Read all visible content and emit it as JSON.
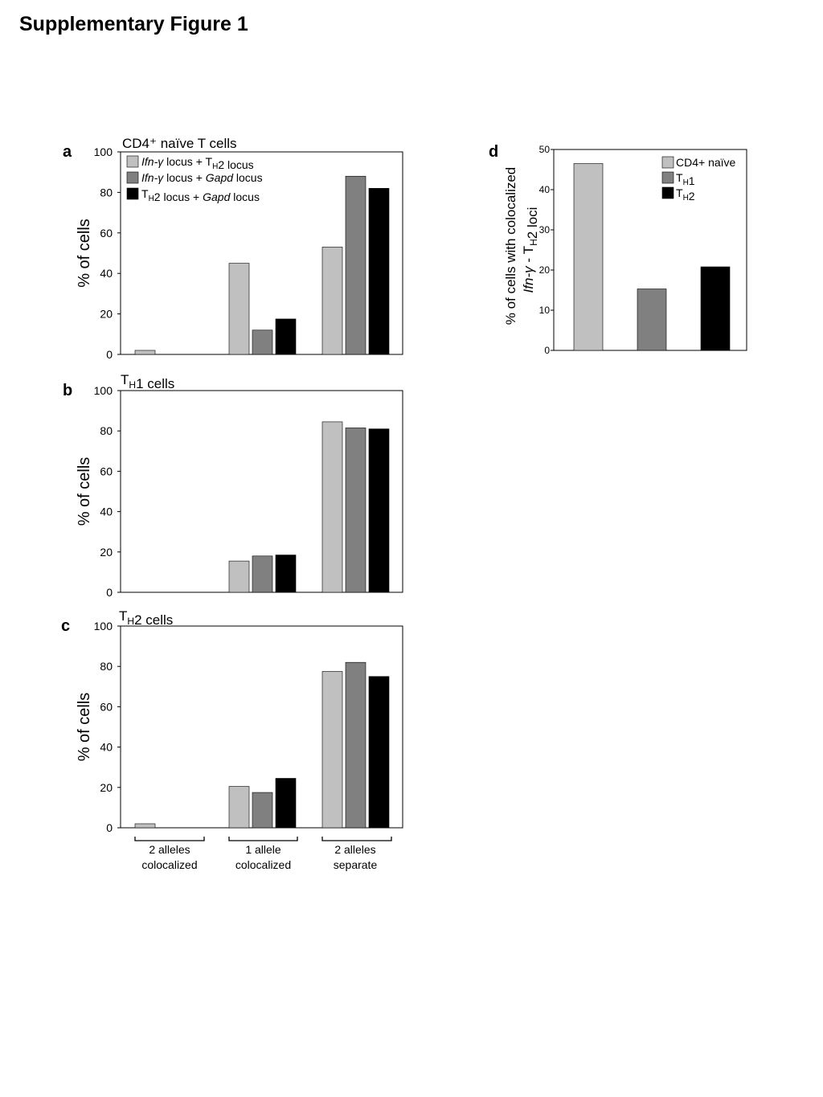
{
  "page": {
    "title": "Supplementary Figure 1"
  },
  "panels": {
    "a": "a",
    "b": "b",
    "c": "c",
    "d": "d"
  },
  "colors": {
    "light": "#c0c0c0",
    "mid": "#808080",
    "dark": "#000000"
  },
  "chart_data": [
    {
      "id": "a",
      "type": "bar",
      "title": "CD4⁺ naïve T cells",
      "ylabel": "% of cells",
      "ylim": [
        0,
        100
      ],
      "yticks": [
        0,
        20,
        40,
        60,
        80,
        100
      ],
      "categories": [
        "2 alleles colocalized",
        "1 allele colocalized",
        "2 alleles separate"
      ],
      "series": [
        {
          "name": "Ifn-γ locus + TH2 locus",
          "color": "#c0c0c0",
          "values": [
            2,
            45,
            53
          ]
        },
        {
          "name": "Ifn-γ locus + Gapd locus",
          "color": "#808080",
          "values": [
            0,
            12,
            88
          ]
        },
        {
          "name": "TH2 locus + Gapd locus",
          "color": "#000000",
          "values": [
            0,
            17.5,
            82
          ]
        }
      ],
      "legend": "top-left"
    },
    {
      "id": "b",
      "type": "bar",
      "title": "TH1 cells",
      "ylabel": "% of cells",
      "ylim": [
        0,
        100
      ],
      "yticks": [
        0,
        20,
        40,
        60,
        80,
        100
      ],
      "categories": [
        "2 alleles colocalized",
        "1 allele colocalized",
        "2 alleles separate"
      ],
      "series": [
        {
          "color": "#c0c0c0",
          "values": [
            0,
            15.5,
            84.5
          ]
        },
        {
          "color": "#808080",
          "values": [
            0,
            18,
            81.5
          ]
        },
        {
          "color": "#000000",
          "values": [
            0,
            18.5,
            81
          ]
        }
      ]
    },
    {
      "id": "c",
      "type": "bar",
      "title": "TH2 cells",
      "ylabel": "% of cells",
      "ylim": [
        0,
        100
      ],
      "yticks": [
        0,
        20,
        40,
        60,
        80,
        100
      ],
      "categories": [
        "2 alleles colocalized",
        "1 allele colocalized",
        "2 alleles separate"
      ],
      "category_labels": [
        [
          "2 alleles",
          "colocalized"
        ],
        [
          "1 allele",
          "colocalized"
        ],
        [
          "2 alleles",
          "separate"
        ]
      ],
      "series": [
        {
          "color": "#c0c0c0",
          "values": [
            2,
            20.5,
            77.5
          ]
        },
        {
          "color": "#808080",
          "values": [
            0,
            17.5,
            82
          ]
        },
        {
          "color": "#000000",
          "values": [
            0,
            24.5,
            75
          ]
        }
      ]
    },
    {
      "id": "d",
      "type": "bar",
      "ylabel_line1": "% of cells with colocalized",
      "ylabel_line2": "Ifn-γ - TH2 loci",
      "ylim": [
        0,
        50
      ],
      "yticks": [
        0,
        10,
        20,
        30,
        40,
        50
      ],
      "categories": [
        "CD4+ naïve",
        "TH1",
        "TH2"
      ],
      "values": [
        46.5,
        15.3,
        20.8
      ],
      "colors": [
        "#c0c0c0",
        "#808080",
        "#000000"
      ],
      "legend": "top-right"
    }
  ]
}
